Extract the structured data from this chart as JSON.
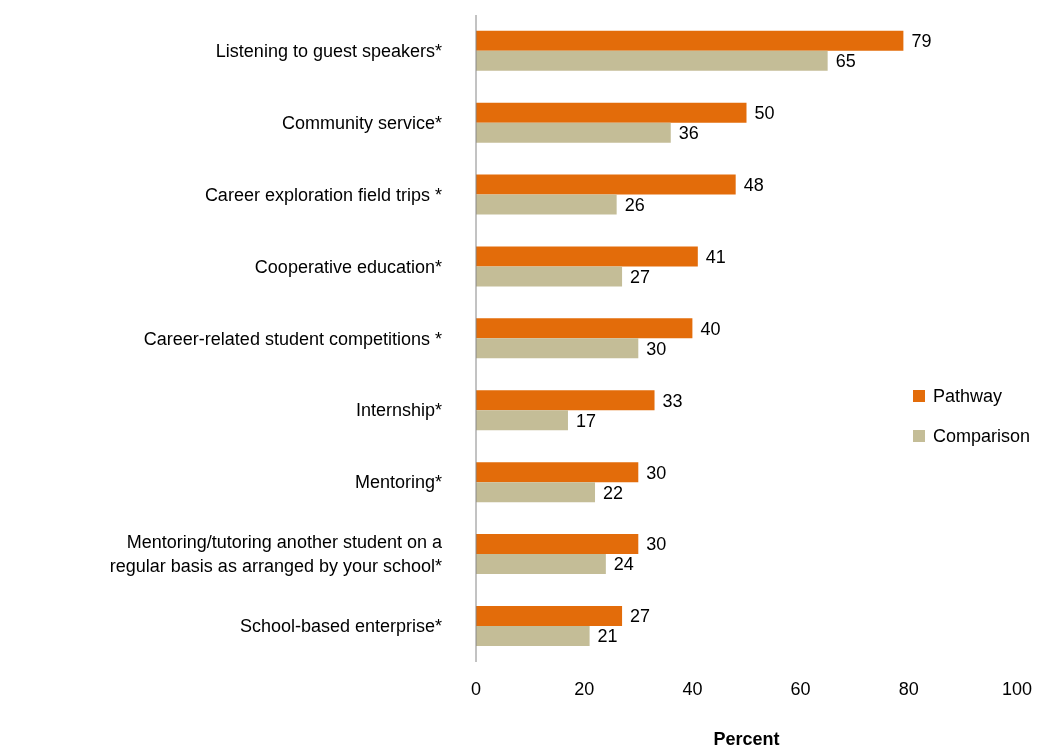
{
  "chart_data": {
    "type": "bar",
    "orientation": "horizontal",
    "xlabel": "Percent",
    "categories": [
      "Listening to guest speakers*",
      "Community service*",
      "Career exploration field trips *",
      "Cooperative education*",
      "Career-related student competitions *",
      "Internship*",
      "Mentoring*",
      "Mentoring/tutoring another student on a regular basis as arranged by your school*",
      "School-based enterprise*"
    ],
    "series": [
      {
        "name": "Pathway",
        "color": "#e36c0a",
        "values": [
          79,
          50,
          48,
          41,
          40,
          33,
          30,
          30,
          27
        ]
      },
      {
        "name": "Comparison",
        "color": "#c4bd97",
        "values": [
          65,
          36,
          26,
          27,
          30,
          17,
          22,
          24,
          21
        ]
      }
    ],
    "xlim": [
      0,
      100
    ],
    "xticks": [
      0,
      20,
      40,
      60,
      80,
      100
    ],
    "data_labels": true,
    "grid": false,
    "legend": "right"
  }
}
